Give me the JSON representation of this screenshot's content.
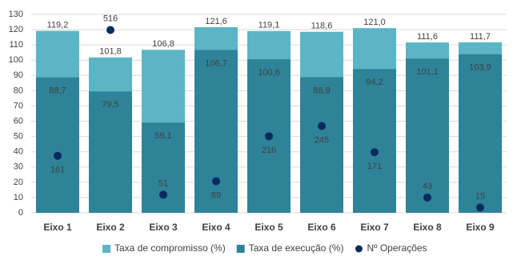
{
  "chart_data": {
    "type": "bar",
    "categories": [
      "Eixo 1",
      "Eixo 2",
      "Eixo 3",
      "Eixo 4",
      "Eixo 5",
      "Eixo 6",
      "Eixo 7",
      "Eixo 8",
      "Eixo 9"
    ],
    "series": [
      {
        "name": "Taxa de compromisso (%)",
        "color": "#5bb5c5",
        "values": [
          119.2,
          101.8,
          106.8,
          121.6,
          119.1,
          118.6,
          121.0,
          111.6,
          111.7
        ],
        "value_labels": [
          "119,2",
          "101,8",
          "106,8",
          "121,6",
          "119,1",
          "118,6",
          "121,0",
          "111,6",
          "111,7"
        ]
      },
      {
        "name": "Taxa de execução (%)",
        "color": "#2e8399",
        "values": [
          88.7,
          79.5,
          59.1,
          106.7,
          100.6,
          88.9,
          94.2,
          101.1,
          103.9
        ],
        "value_labels": [
          "88,7",
          "79,5",
          "59,1",
          "106,7",
          "100,6",
          "88,9",
          "94,2",
          "101,1",
          "103,9"
        ]
      },
      {
        "name": "Nº Operações",
        "color": "#0b2a5e",
        "axis": "y2",
        "values": [
          161,
          516,
          51,
          89,
          216,
          245,
          171,
          43,
          15
        ]
      }
    ],
    "ylim": [
      0,
      130
    ],
    "yticks": [
      0,
      10,
      20,
      30,
      40,
      50,
      60,
      70,
      80,
      90,
      100,
      110,
      120,
      130
    ],
    "y2lim": [
      0,
      560
    ],
    "grid": true,
    "legend": "bottom"
  }
}
